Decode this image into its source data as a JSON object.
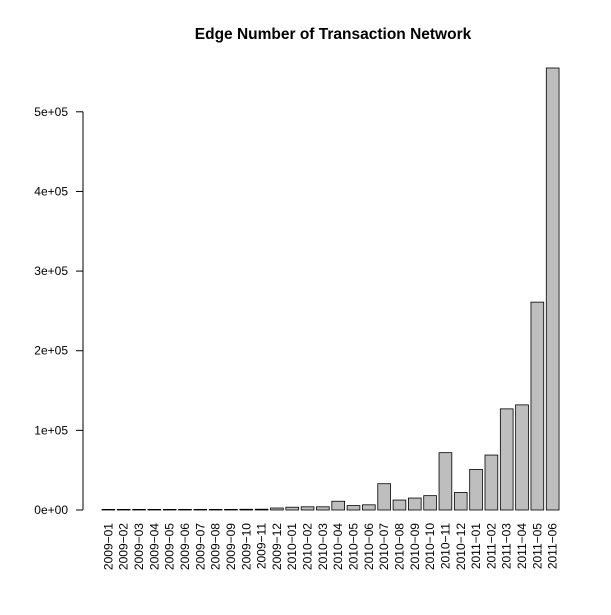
{
  "chart_data": {
    "type": "bar",
    "title": "Edge Number of Transaction Network",
    "xlabel": "",
    "ylabel": "",
    "ylim": [
      0,
      555000
    ],
    "y_ticks": [
      0,
      100000,
      200000,
      300000,
      400000,
      500000
    ],
    "y_tick_labels": [
      "0e+00",
      "1e+05",
      "2e+05",
      "3e+05",
      "4e+05",
      "5e+05"
    ],
    "grid": false,
    "legend": "none",
    "bar_fill": "#bebebe",
    "bar_stroke": "#000000",
    "categories": [
      "2009−01",
      "2009−02",
      "2009−03",
      "2009−04",
      "2009−05",
      "2009−06",
      "2009−07",
      "2009−08",
      "2009−09",
      "2009−10",
      "2009−11",
      "2009−12",
      "2010−01",
      "2010−02",
      "2010−03",
      "2010−04",
      "2010−05",
      "2010−06",
      "2010−07",
      "2010−08",
      "2010−09",
      "2010−10",
      "2010−11",
      "2010−12",
      "2011−01",
      "2011−02",
      "2011−03",
      "2011−04",
      "2011−05",
      "2011−06"
    ],
    "values": [
      100,
      150,
      200,
      250,
      300,
      350,
      400,
      450,
      550,
      900,
      1000,
      2500,
      3500,
      4000,
      4000,
      11000,
      5500,
      6500,
      33000,
      12500,
      15000,
      18000,
      72000,
      22000,
      51000,
      69000,
      127000,
      132000,
      261000,
      555000
    ]
  }
}
